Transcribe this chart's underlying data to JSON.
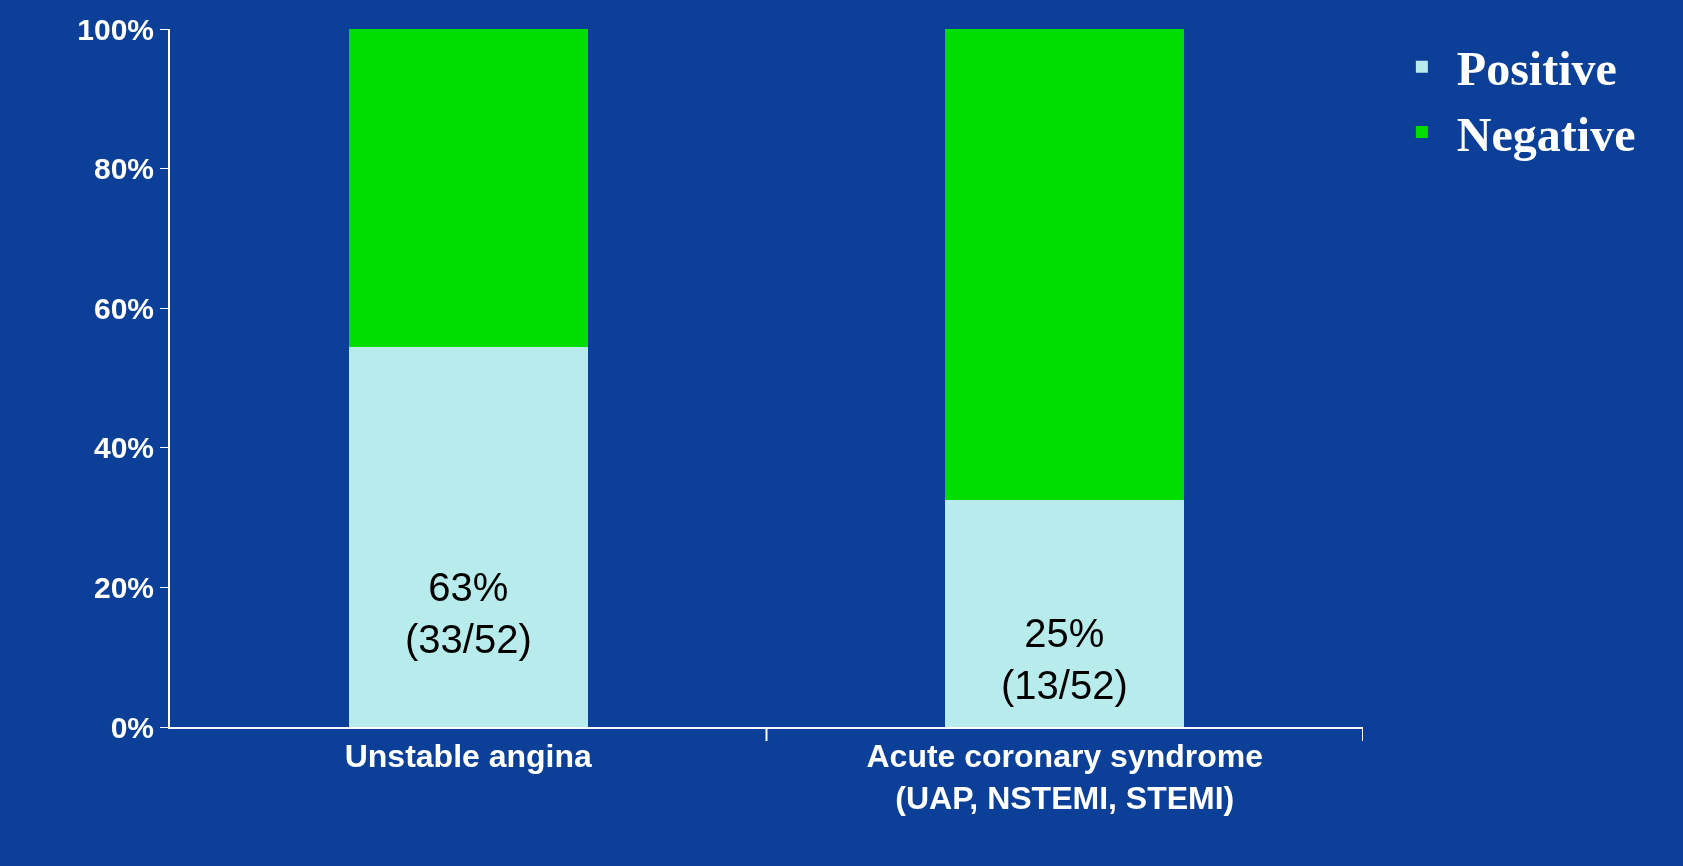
{
  "chart_data": {
    "type": "bar",
    "stacked": true,
    "categories": [
      "Unstable angina",
      "Acute coronary syndrome\n(UAP, NSTEMI, STEMI)"
    ],
    "series": [
      {
        "name": "Positive",
        "color": "#b8ecec",
        "values": [
          54.5,
          32.5
        ]
      },
      {
        "name": "Negative",
        "color": "#00dd00",
        "values": [
          45.5,
          67.5
        ]
      }
    ],
    "ylim": [
      0,
      100
    ],
    "yticks": [
      {
        "value": 0,
        "label": "0%"
      },
      {
        "value": 20,
        "label": "20%"
      },
      {
        "value": 40,
        "label": "40%"
      },
      {
        "value": 60,
        "label": "60%"
      },
      {
        "value": 80,
        "label": "80%"
      },
      {
        "value": 100,
        "label": "100%"
      }
    ],
    "annotations": [
      "63%\n(33/52)",
      "25%\n(13/52)"
    ],
    "grid": false,
    "legend": "top right"
  }
}
